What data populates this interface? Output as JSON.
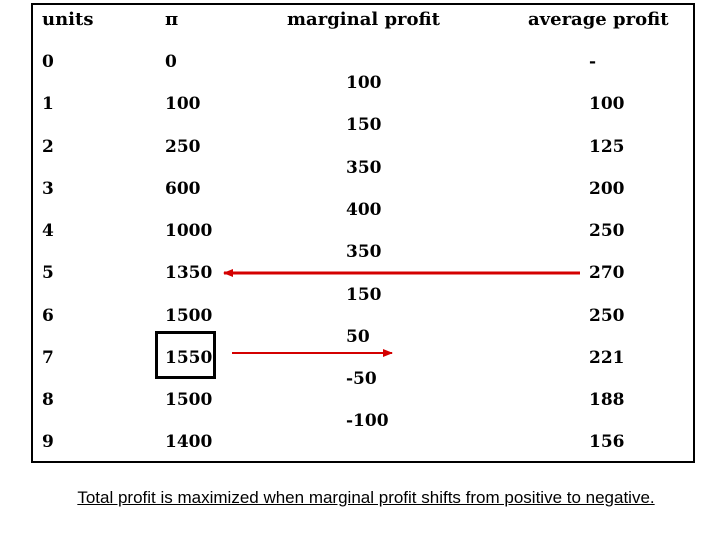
{
  "table": {
    "headers": {
      "units": "units",
      "pi": "π",
      "marginal": "marginal profit",
      "average": "average profit"
    },
    "rows": [
      {
        "units": "0",
        "pi": "0",
        "average": "-"
      },
      {
        "units": "1",
        "pi": "100",
        "average": "100"
      },
      {
        "units": "2",
        "pi": "250",
        "average": "125"
      },
      {
        "units": "3",
        "pi": "600",
        "average": "200"
      },
      {
        "units": "4",
        "pi": "1000",
        "average": "250"
      },
      {
        "units": "5",
        "pi": "1350",
        "average": "270"
      },
      {
        "units": "6",
        "pi": "1500",
        "average": "250"
      },
      {
        "units": "7",
        "pi": "1550",
        "average": "221"
      },
      {
        "units": "8",
        "pi": "1500",
        "average": "188"
      },
      {
        "units": "9",
        "pi": "1400",
        "average": "156"
      }
    ],
    "marginal": [
      "100",
      "150",
      "350",
      "400",
      "350",
      "150",
      "50",
      "-50",
      "-100"
    ]
  },
  "colors": {
    "arrow": "#d40000",
    "text": "#000000",
    "background": "#ffffff"
  },
  "caption": "Total profit is maximized when marginal profit shifts from positive to negative."
}
